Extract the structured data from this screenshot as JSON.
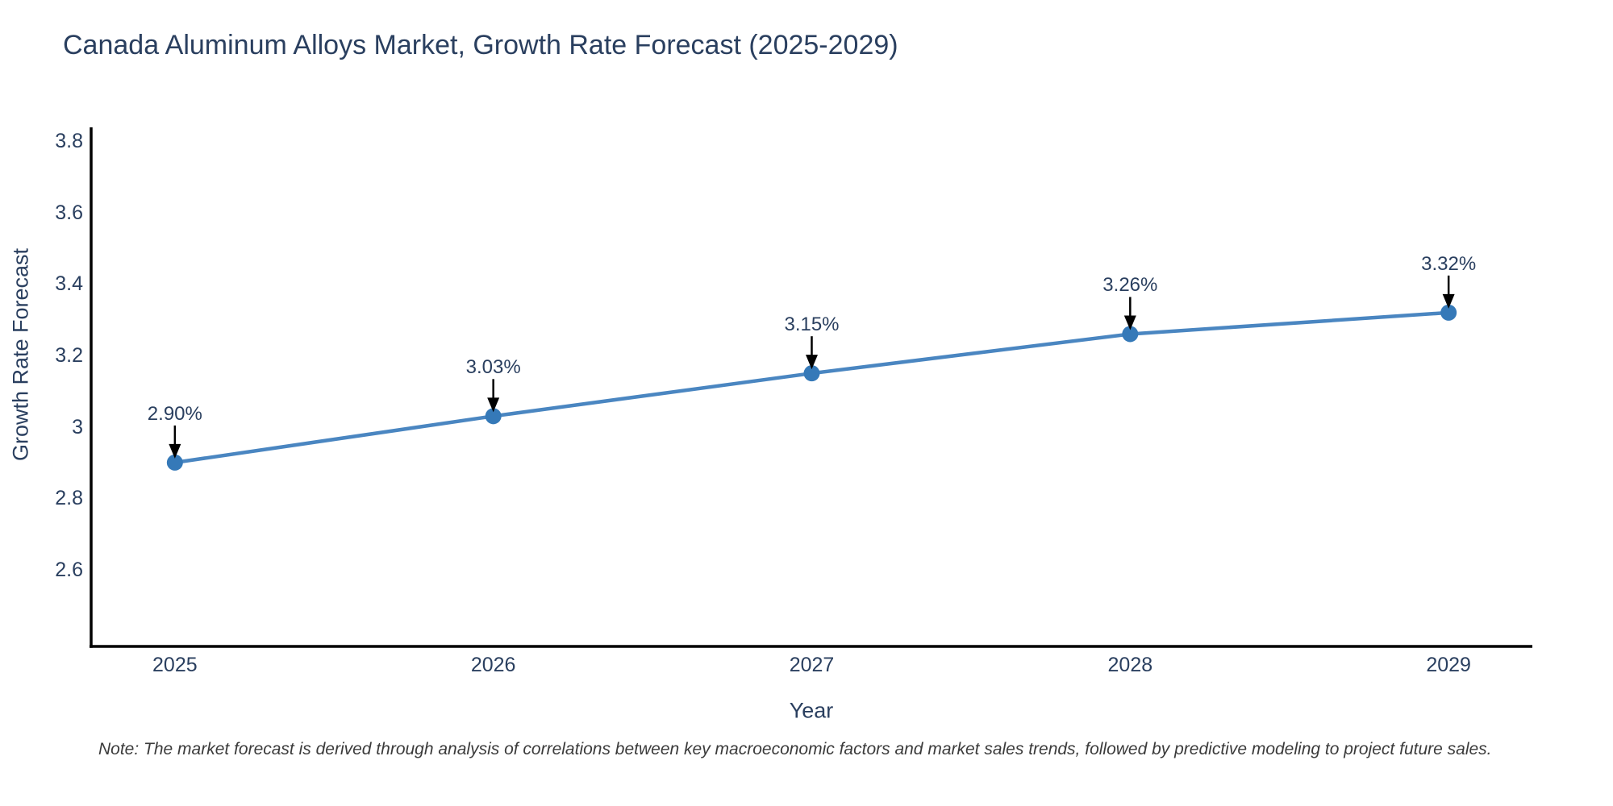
{
  "title": "Canada Aluminum Alloys Market, Growth Rate Forecast (2025-2029)",
  "note": "Note: The market forecast is derived through analysis of correlations between key macroeconomic factors and market sales trends, followed by predictive modeling to project future sales.",
  "chart_data": {
    "type": "line",
    "title": "Canada Aluminum Alloys Market, Growth Rate Forecast (2025-2029)",
    "xlabel": "Year",
    "ylabel": "Growth Rate Forecast",
    "x": [
      2025,
      2026,
      2027,
      2028,
      2029
    ],
    "values": [
      2.9,
      3.03,
      3.15,
      3.26,
      3.32
    ],
    "point_labels": [
      "2.90%",
      "3.03%",
      "3.15%",
      "3.26%",
      "3.32%"
    ],
    "xticks": {
      "values": [
        2025,
        2026,
        2027,
        2028,
        2029
      ],
      "labels": [
        "2025",
        "2026",
        "2027",
        "2028",
        "2029"
      ]
    },
    "yticks": {
      "values": [
        2.6,
        2.8,
        3.0,
        3.2,
        3.4,
        3.6,
        3.8
      ],
      "labels": [
        "2.6",
        "2.8",
        "3",
        "3.2",
        "3.4",
        "3.6",
        "3.8"
      ]
    },
    "xlim": [
      2024.737,
      2029.263
    ],
    "ylim": [
      2.385,
      3.839
    ],
    "grid": false,
    "legend": false,
    "annotations_have_arrows": true,
    "colors": {
      "line": "#4a86c1",
      "marker": "#3579b8",
      "arrow": "#000000",
      "axis": "#000000",
      "text": "#2a3f5f",
      "note_text": "#3b3b3b",
      "background": "#ffffff"
    }
  }
}
